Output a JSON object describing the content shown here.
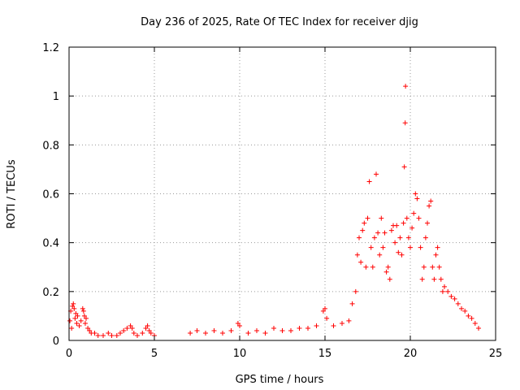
{
  "chart_data": {
    "type": "scatter",
    "title": "Day 236 of 2025, Rate Of TEC Index for receiver djig",
    "xlabel": "GPS time / hours",
    "ylabel": "ROTI / TECUs",
    "xlim": [
      0,
      25
    ],
    "ylim": [
      0,
      1.2
    ],
    "x_ticks": [
      "0",
      "5",
      "10",
      "15",
      "20",
      "25"
    ],
    "y_ticks": [
      "0",
      "0.2",
      "0.4",
      "0.6",
      "0.8",
      "1",
      "1.2"
    ],
    "grid": true,
    "marker": "+",
    "color": "#ff0000",
    "series": [
      {
        "points": [
          [
            0.05,
            0.08
          ],
          [
            0.1,
            0.12
          ],
          [
            0.15,
            0.05
          ],
          [
            0.2,
            0.14
          ],
          [
            0.25,
            0.15
          ],
          [
            0.3,
            0.13
          ],
          [
            0.35,
            0.09
          ],
          [
            0.4,
            0.11
          ],
          [
            0.45,
            0.07
          ],
          [
            0.5,
            0.1
          ],
          [
            0.6,
            0.06
          ],
          [
            0.7,
            0.08
          ],
          [
            0.8,
            0.13
          ],
          [
            0.85,
            0.12
          ],
          [
            0.9,
            0.1
          ],
          [
            0.95,
            0.07
          ],
          [
            1.0,
            0.09
          ],
          [
            1.1,
            0.05
          ],
          [
            1.2,
            0.04
          ],
          [
            1.3,
            0.03
          ],
          [
            1.5,
            0.03
          ],
          [
            1.7,
            0.02
          ],
          [
            2.0,
            0.02
          ],
          [
            2.3,
            0.03
          ],
          [
            2.5,
            0.02
          ],
          [
            2.8,
            0.02
          ],
          [
            3.0,
            0.03
          ],
          [
            3.2,
            0.04
          ],
          [
            3.4,
            0.05
          ],
          [
            3.6,
            0.06
          ],
          [
            3.7,
            0.05
          ],
          [
            3.8,
            0.03
          ],
          [
            4.0,
            0.02
          ],
          [
            4.3,
            0.03
          ],
          [
            4.5,
            0.05
          ],
          [
            4.6,
            0.06
          ],
          [
            4.7,
            0.04
          ],
          [
            4.8,
            0.03
          ],
          [
            5.0,
            0.02
          ],
          [
            7.1,
            0.03
          ],
          [
            7.5,
            0.04
          ],
          [
            8.0,
            0.03
          ],
          [
            8.5,
            0.04
          ],
          [
            9.0,
            0.03
          ],
          [
            9.5,
            0.04
          ],
          [
            9.9,
            0.07
          ],
          [
            10.0,
            0.06
          ],
          [
            10.5,
            0.03
          ],
          [
            11.0,
            0.04
          ],
          [
            11.5,
            0.03
          ],
          [
            12.0,
            0.05
          ],
          [
            12.5,
            0.04
          ],
          [
            13.0,
            0.04
          ],
          [
            13.5,
            0.05
          ],
          [
            14.0,
            0.05
          ],
          [
            14.5,
            0.06
          ],
          [
            14.9,
            0.12
          ],
          [
            15.0,
            0.13
          ],
          [
            15.1,
            0.09
          ],
          [
            15.5,
            0.06
          ],
          [
            16.0,
            0.07
          ],
          [
            16.4,
            0.08
          ],
          [
            16.6,
            0.15
          ],
          [
            16.8,
            0.2
          ],
          [
            16.9,
            0.35
          ],
          [
            17.0,
            0.42
          ],
          [
            17.1,
            0.32
          ],
          [
            17.2,
            0.45
          ],
          [
            17.3,
            0.48
          ],
          [
            17.4,
            0.3
          ],
          [
            17.5,
            0.5
          ],
          [
            17.6,
            0.65
          ],
          [
            17.7,
            0.38
          ],
          [
            17.8,
            0.3
          ],
          [
            17.9,
            0.42
          ],
          [
            18.0,
            0.68
          ],
          [
            18.1,
            0.44
          ],
          [
            18.2,
            0.35
          ],
          [
            18.3,
            0.5
          ],
          [
            18.4,
            0.38
          ],
          [
            18.5,
            0.44
          ],
          [
            18.6,
            0.28
          ],
          [
            18.7,
            0.3
          ],
          [
            18.8,
            0.25
          ],
          [
            18.9,
            0.45
          ],
          [
            19.0,
            0.47
          ],
          [
            19.1,
            0.4
          ],
          [
            19.2,
            0.47
          ],
          [
            19.3,
            0.36
          ],
          [
            19.4,
            0.42
          ],
          [
            19.5,
            0.35
          ],
          [
            19.6,
            0.48
          ],
          [
            19.65,
            0.71
          ],
          [
            19.7,
            0.89
          ],
          [
            19.72,
            1.04
          ],
          [
            19.8,
            0.5
          ],
          [
            19.9,
            0.42
          ],
          [
            20.0,
            0.38
          ],
          [
            20.1,
            0.46
          ],
          [
            20.2,
            0.52
          ],
          [
            20.3,
            0.6
          ],
          [
            20.4,
            0.58
          ],
          [
            20.5,
            0.5
          ],
          [
            20.6,
            0.38
          ],
          [
            20.7,
            0.25
          ],
          [
            20.8,
            0.3
          ],
          [
            20.9,
            0.42
          ],
          [
            21.0,
            0.48
          ],
          [
            21.1,
            0.55
          ],
          [
            21.2,
            0.57
          ],
          [
            21.3,
            0.3
          ],
          [
            21.4,
            0.25
          ],
          [
            21.5,
            0.35
          ],
          [
            21.6,
            0.38
          ],
          [
            21.7,
            0.3
          ],
          [
            21.8,
            0.25
          ],
          [
            21.9,
            0.2
          ],
          [
            22.0,
            0.22
          ],
          [
            22.2,
            0.2
          ],
          [
            22.4,
            0.18
          ],
          [
            22.6,
            0.17
          ],
          [
            22.8,
            0.15
          ],
          [
            23.0,
            0.13
          ],
          [
            23.2,
            0.12
          ],
          [
            23.4,
            0.1
          ],
          [
            23.6,
            0.09
          ],
          [
            23.8,
            0.07
          ],
          [
            24.0,
            0.05
          ]
        ]
      }
    ]
  }
}
